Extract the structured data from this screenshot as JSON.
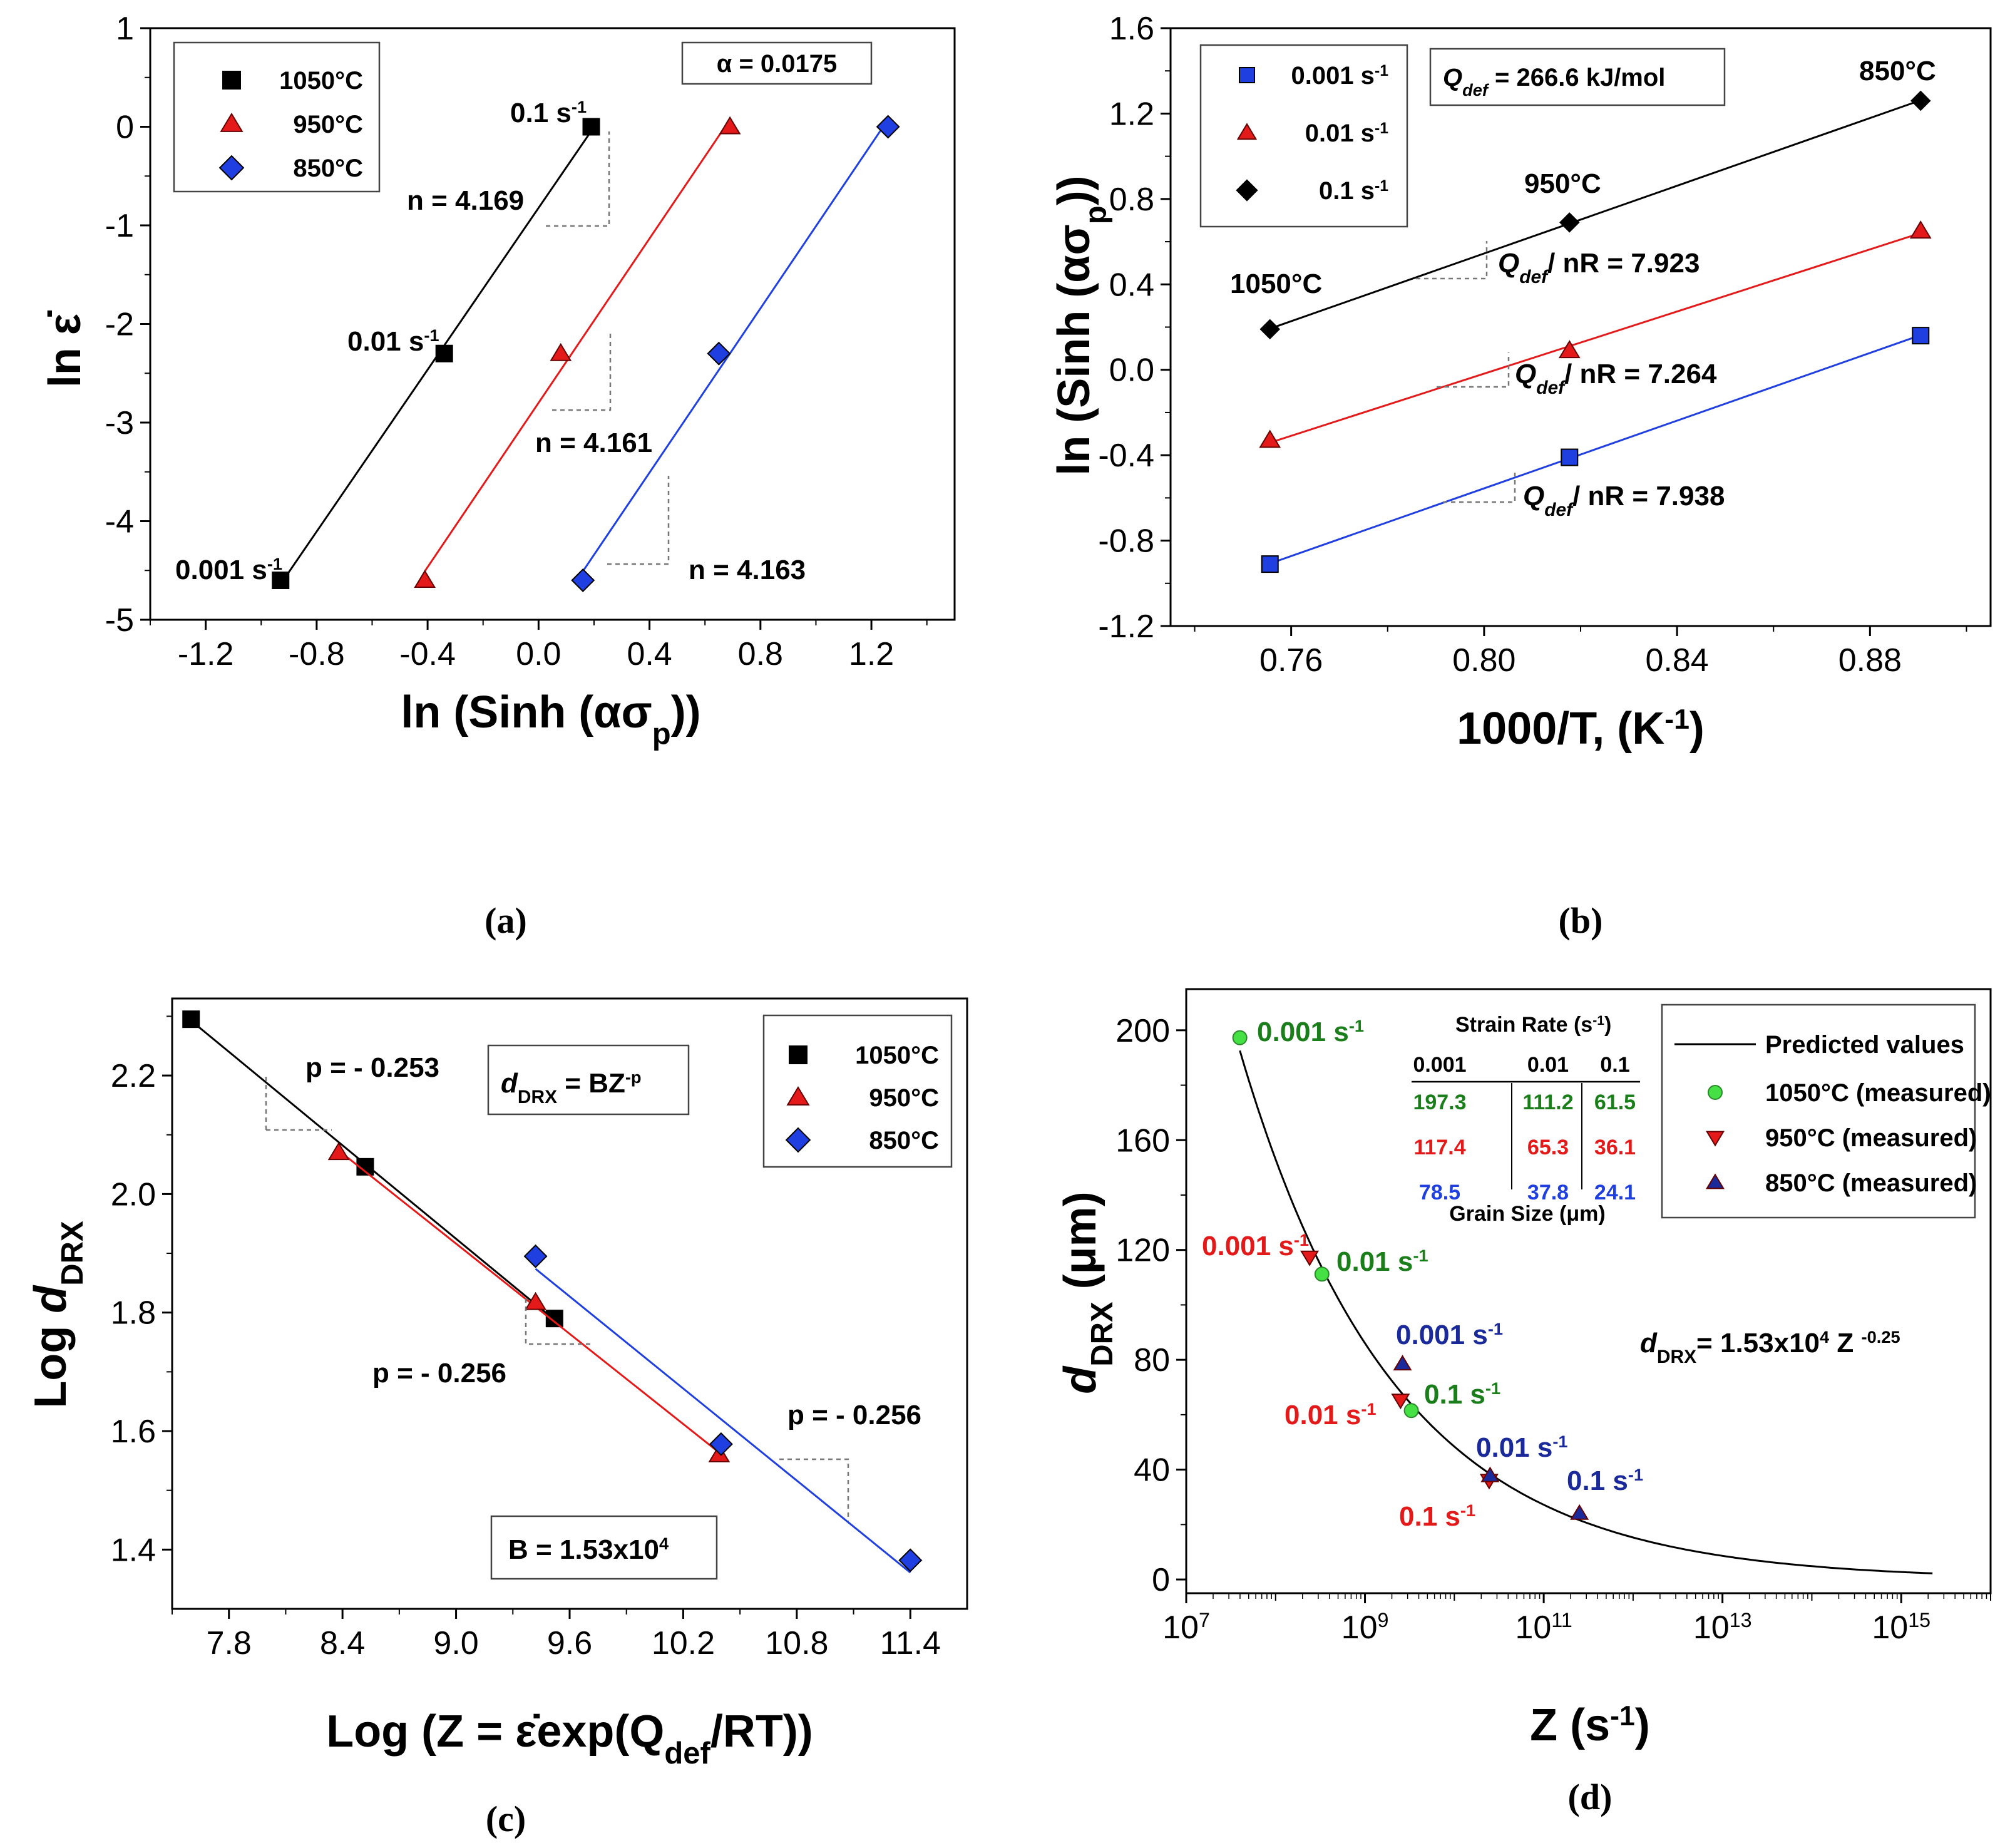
{
  "colors": {
    "black": "#000000",
    "red": "#e41a1a",
    "blue": "#1f3fe0",
    "green": "#1a7f1a",
    "lightgreen": "#44e044",
    "darkblue": "#1a2a9a"
  },
  "chart_data": [
    {
      "id": "a",
      "type": "scatter",
      "caption": "(a)",
      "xlabel": "ln (Sinh (ασp))",
      "ylabel": "ln ε̇",
      "xlim": [
        -1.4,
        1.5
      ],
      "ylim": [
        -5,
        1
      ],
      "xticks": [
        "-1.2",
        "-0.8",
        "-0.4",
        "0.0",
        "0.4",
        "0.8",
        "1.2"
      ],
      "yticks": [
        "1",
        "0",
        "-1",
        "-2",
        "-3",
        "-4",
        "-5"
      ],
      "legend": [
        "1050°C",
        "950°C",
        "850°C"
      ],
      "alpha_box": "α = 0.0175",
      "series": [
        {
          "name": "1050°C",
          "marker": "square",
          "color": "black",
          "x": [
            -0.93,
            -0.34,
            0.19
          ],
          "y": [
            -4.6,
            -2.3,
            0.0
          ],
          "slope_label": "n = 4.169"
        },
        {
          "name": "950°C",
          "marker": "triangle",
          "color": "red",
          "x": [
            -0.41,
            0.08,
            0.69
          ],
          "y": [
            -4.6,
            -2.3,
            0.0
          ],
          "slope_label": "n = 4.161"
        },
        {
          "name": "850°C",
          "marker": "diamond",
          "color": "blue",
          "x": [
            0.16,
            0.65,
            1.26
          ],
          "y": [
            -4.6,
            -2.3,
            0.0
          ],
          "slope_label": "n = 4.163"
        }
      ],
      "point_labels": [
        "0.1 s-1",
        "0.01 s-1",
        "0.001 s-1"
      ]
    },
    {
      "id": "b",
      "type": "scatter",
      "caption": "(b)",
      "xlabel": "1000/T, (K-1)",
      "ylabel": "ln (Sinh (ασp))",
      "xlim": [
        0.735,
        0.905
      ],
      "ylim": [
        -1.2,
        1.6
      ],
      "xticks": [
        "0.76",
        "0.80",
        "0.84",
        "0.88"
      ],
      "yticks": [
        "1.6",
        "1.2",
        "0.8",
        "0.4",
        "0.0",
        "-0.4",
        "-0.8",
        "-1.2"
      ],
      "legend": [
        "0.001 s-1",
        "0.01 s-1",
        "0.1 s-1"
      ],
      "q_box": "Qdef = 266.6 kJ/mol",
      "series": [
        {
          "name": "0.001 s-1",
          "marker": "square",
          "color": "blue",
          "x": [
            0.7556,
            0.8177,
            0.8905
          ],
          "y": [
            -0.91,
            -0.41,
            0.16
          ],
          "slope_label": "Qdef/ nR = 7.938"
        },
        {
          "name": "0.01 s-1",
          "marker": "triangle",
          "color": "red",
          "x": [
            0.7556,
            0.8177,
            0.8905
          ],
          "y": [
            -0.33,
            0.09,
            0.65
          ],
          "slope_label": "Qdef/ nR = 7.264"
        },
        {
          "name": "0.1 s-1",
          "marker": "diamond",
          "color": "black",
          "x": [
            0.7556,
            0.8177,
            0.8905
          ],
          "y": [
            0.19,
            0.69,
            1.26
          ],
          "slope_label": "Qdef/ nR = 7.923"
        }
      ],
      "point_labels": [
        "1050°C",
        "950°C",
        "850°C"
      ]
    },
    {
      "id": "c",
      "type": "scatter",
      "caption": "(c)",
      "xlabel": "Log (Z = ε̇exp(Qdef/RT))",
      "ylabel": "Log dDRX",
      "xlim": [
        7.5,
        11.7
      ],
      "ylim": [
        1.3,
        2.33
      ],
      "xticks": [
        "7.8",
        "8.4",
        "9.0",
        "9.6",
        "10.2",
        "10.8",
        "11.4"
      ],
      "yticks": [
        "2.2",
        "2.0",
        "1.8",
        "1.6",
        "1.4"
      ],
      "legend": [
        "1050°C",
        "950°C",
        "850°C"
      ],
      "eq_box": "dDRX = BZ-p",
      "b_box": "B = 1.53x104",
      "series": [
        {
          "name": "1050°C",
          "marker": "square",
          "color": "black",
          "x": [
            7.6,
            8.52,
            9.52
          ],
          "y": [
            2.295,
            2.046,
            1.79
          ],
          "slope_label": "p = - 0.253"
        },
        {
          "name": "950°C",
          "marker": "triangle",
          "color": "red",
          "x": [
            8.38,
            9.42,
            10.39
          ],
          "y": [
            2.07,
            1.817,
            1.56
          ],
          "slope_label": "p = - 0.256"
        },
        {
          "name": "850°C",
          "marker": "diamond",
          "color": "blue",
          "x": [
            9.42,
            10.4,
            11.4
          ],
          "y": [
            1.895,
            1.578,
            1.382
          ],
          "slope_label": "p = - 0.256"
        }
      ]
    },
    {
      "id": "d",
      "type": "scatter",
      "caption": "(d)",
      "xlabel": "Z (s-1)",
      "ylabel": "dDRX (μm)",
      "xscale": "log",
      "xlim": [
        10000000,
        1e+16
      ],
      "ylim": [
        -5,
        215
      ],
      "xticks": [
        "10^7",
        "10^9",
        "10^11",
        "10^13",
        "10^15"
      ],
      "yticks": [
        "200",
        "160",
        "120",
        "80",
        "40",
        "0"
      ],
      "legend": [
        "Predicted values",
        "1050°C (measured)",
        "950°C (measured)",
        "850°C (measured)"
      ],
      "equation": "dDRX = 1.53x104 Z -0.25",
      "fit": {
        "name": "Predicted values",
        "coef": 15300,
        "exp": -0.25
      },
      "series": [
        {
          "name": "1050°C (measured)",
          "marker": "circle",
          "color": "lightgreen",
          "x": [
            39800000,
            330000000,
            3300000000.0
          ],
          "y": [
            197.3,
            111.2,
            61.5
          ],
          "labels": [
            "0.001 s-1",
            "0.01 s-1",
            "0.1 s-1"
          ]
        },
        {
          "name": "950°C (measured)",
          "marker": "triangle-down",
          "color": "red",
          "x": [
            240000000,
            2500000000.0,
            24500000000.0
          ],
          "y": [
            117.4,
            65.3,
            36.1
          ],
          "labels": [
            "0.001 s-1",
            "0.01 s-1",
            "0.1 s-1"
          ]
        },
        {
          "name": "850°C (measured)",
          "marker": "triangle",
          "color": "darkblue",
          "x": [
            2630000000.0,
            25100000000.0,
            251000000000.0
          ],
          "y": [
            78.5,
            37.8,
            24.1
          ],
          "labels": [
            "0.001 s-1",
            "0.01 s-1",
            "0.1 s-1"
          ]
        }
      ],
      "table": {
        "title": "Strain Rate (s-1)",
        "headers": [
          "0.001",
          "0.01",
          "0.1"
        ],
        "rows": [
          [
            "197.3",
            "111.2",
            "61.5"
          ],
          [
            "117.4",
            "65.3",
            "36.1"
          ],
          [
            "78.5",
            "37.8",
            "24.1"
          ]
        ],
        "footer": "Grain Size (μm)"
      }
    }
  ]
}
